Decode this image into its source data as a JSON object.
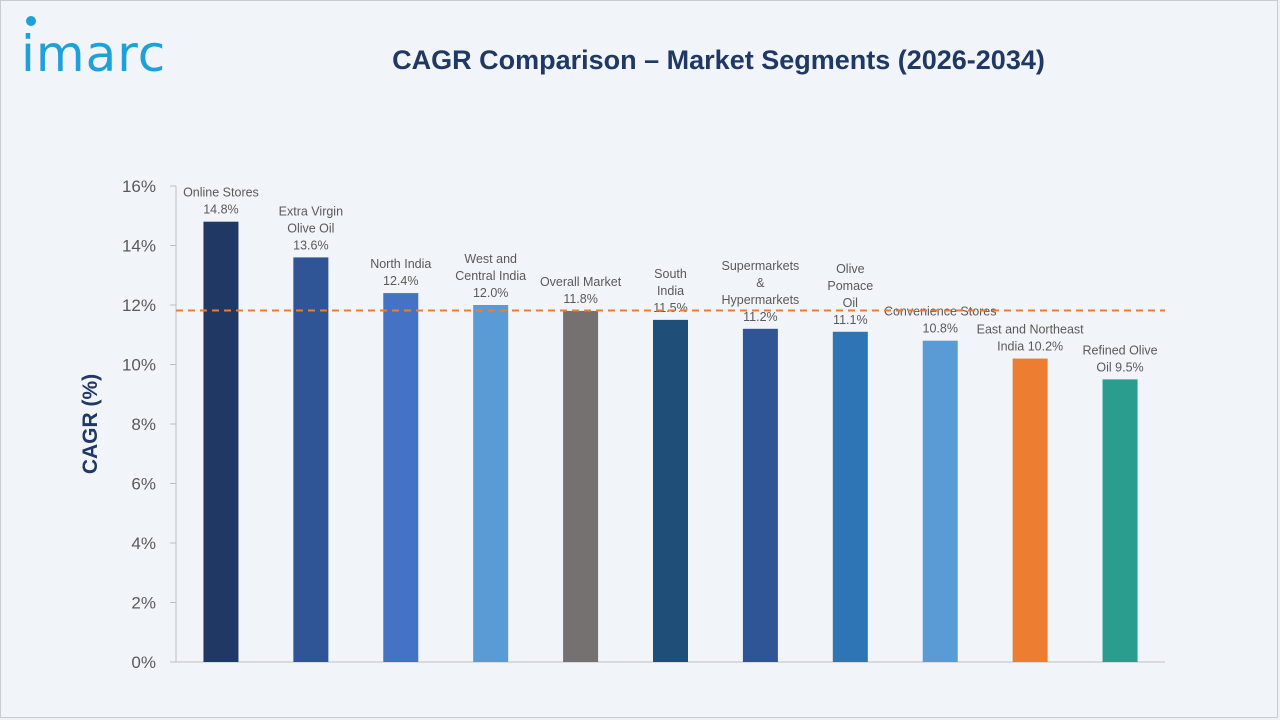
{
  "logo_text": "imarc",
  "chart_data": {
    "type": "bar",
    "title": "CAGR Comparison – Market Segments (2026-2034)",
    "ylabel": "CAGR (%)",
    "xlabel": "",
    "ylim": [
      0,
      16
    ],
    "yticks": [
      "0%",
      "2%",
      "4%",
      "6%",
      "8%",
      "10%",
      "12%",
      "14%",
      "16%"
    ],
    "reference_line": {
      "value": 11.8,
      "style": "dashed",
      "color": "#ed7d31"
    },
    "bars": [
      {
        "label": [
          "Online Stores",
          "14.8%"
        ],
        "value": 14.8,
        "color": "#1f3864"
      },
      {
        "label": [
          "Extra Virgin",
          "Olive Oil",
          "13.6%"
        ],
        "value": 13.6,
        "color": "#2f5597"
      },
      {
        "label": [
          "North India",
          "12.4%"
        ],
        "value": 12.4,
        "color": "#4472c4"
      },
      {
        "label": [
          "West and",
          "Central India",
          "12.0%"
        ],
        "value": 12.0,
        "color": "#5b9bd5"
      },
      {
        "label": [
          "Overall Market",
          "11.8%"
        ],
        "value": 11.8,
        "color": "#767171"
      },
      {
        "label": [
          "South",
          "India",
          "11.5%"
        ],
        "value": 11.5,
        "color": "#1f4e79"
      },
      {
        "label": [
          "Supermarkets",
          "&",
          "Hypermarkets",
          "11.2%"
        ],
        "value": 11.2,
        "color": "#2f5597"
      },
      {
        "label": [
          "Olive",
          "Pomace",
          "Oil",
          "11.1%"
        ],
        "value": 11.1,
        "color": "#2e75b6"
      },
      {
        "label": [
          "Convenience Stores",
          "10.8%"
        ],
        "value": 10.8,
        "color": "#5b9bd5"
      },
      {
        "label": [
          "East and Northeast",
          "India 10.2%"
        ],
        "value": 10.2,
        "color": "#ed7d31"
      },
      {
        "label": [
          "Refined Olive",
          "Oil 9.5%"
        ],
        "value": 9.5,
        "color": "#2a9d8f"
      }
    ]
  }
}
